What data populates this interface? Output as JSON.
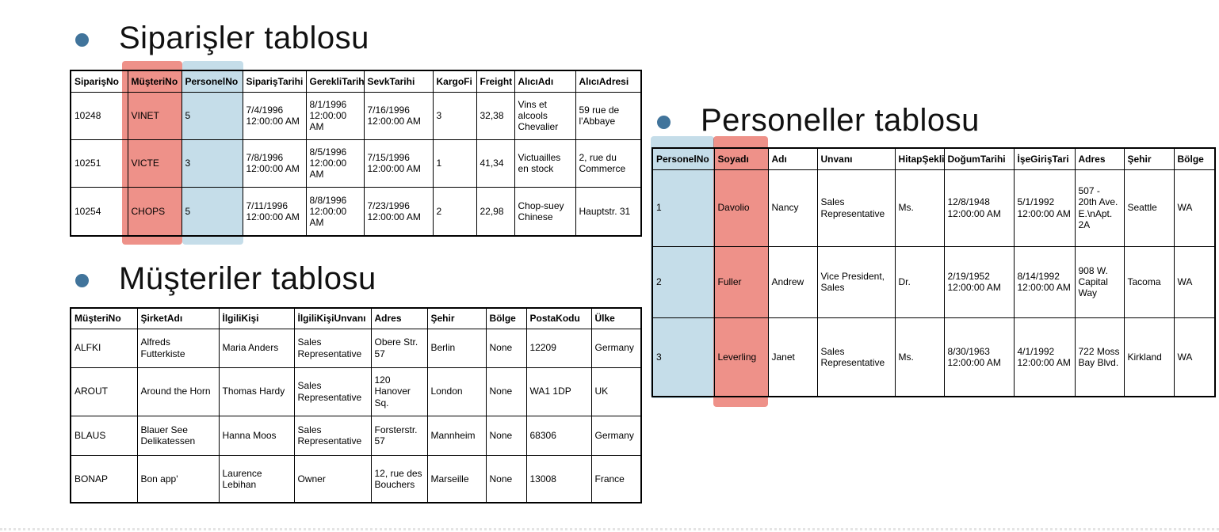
{
  "colors": {
    "red_highlight": "#EE9189",
    "blue_highlight": "#C5DDE9",
    "bullet": "#41749B",
    "table_border": "#000000"
  },
  "tables": {
    "orders": {
      "title": "Siparişler tablosu",
      "columns": [
        "SiparişNo",
        "MüşteriNo",
        "PersonelNo",
        "SiparişTarihi",
        "GerekliTarih",
        "SevkTarihi",
        "KargoFi",
        "Freight",
        "AlıcıAdı",
        "AlıcıAdresi"
      ],
      "rows": [
        [
          "10248",
          "VINET",
          "5",
          "7/4/1996 12:00:00 AM",
          "8/1/1996 12:00:00 AM",
          "7/16/1996 12:00:00 AM",
          "3",
          "32,38",
          "Vins et alcools Chevalier",
          "59 rue de l'Abbaye"
        ],
        [
          "10251",
          "VICTE",
          "3",
          "7/8/1996 12:00:00 AM",
          "8/5/1996 12:00:00 AM",
          "7/15/1996 12:00:00 AM",
          "1",
          "41,34",
          "Victuailles en stock",
          "2, rue du Commerce"
        ],
        [
          "10254",
          "CHOPS",
          "5",
          "7/11/1996 12:00:00 AM",
          "8/8/1996 12:00:00 AM",
          "7/23/1996 12:00:00 AM",
          "2",
          "22,98",
          "Chop-suey Chinese",
          "Hauptstr. 31"
        ]
      ],
      "highlighted_columns": [
        {
          "column": "MüşteriNo",
          "color": "red"
        },
        {
          "column": "PersonelNo",
          "color": "blue"
        }
      ]
    },
    "customers": {
      "title": "Müşteriler tablosu",
      "columns": [
        "MüşteriNo",
        "ŞirketAdı",
        "İlgiliKişi",
        "İlgiliKişiUnvanı",
        "Adres",
        "Şehir",
        "Bölge",
        "PostaKodu",
        "Ülke"
      ],
      "rows": [
        [
          "ALFKI",
          "Alfreds Futterkiste",
          "Maria Anders",
          "Sales Representative",
          "Obere Str. 57",
          "Berlin",
          "None",
          "12209",
          "Germany"
        ],
        [
          "AROUT",
          "Around the Horn",
          "Thomas Hardy",
          "Sales Representative",
          "120 Hanover Sq.",
          "London",
          "None",
          "WA1 1DP",
          "UK"
        ],
        [
          "BLAUS",
          "Blauer See Delikatessen",
          "Hanna Moos",
          "Sales Representative",
          "Forsterstr. 57",
          "Mannheim",
          "None",
          "68306",
          "Germany"
        ],
        [
          "BONAP",
          "Bon app'",
          "Laurence Lebihan",
          "Owner",
          "12, rue des Bouchers",
          "Marseille",
          "None",
          "13008",
          "France"
        ]
      ],
      "highlighted_columns": []
    },
    "employees": {
      "title": "Personeller tablosu",
      "columns": [
        "PersonelNo",
        "Soyadı",
        "Adı",
        "Unvanı",
        "HitapŞekli",
        "DoğumTarihi",
        "İşeGirişTari",
        "Adres",
        "Şehir",
        "Bölge"
      ],
      "rows": [
        [
          "1",
          "Davolio",
          "Nancy",
          "Sales Representative",
          "Ms.",
          "12/8/1948 12:00:00 AM",
          "5/1/1992 12:00:00 AM",
          "507 - 20th Ave. E.\\nApt. 2A",
          "Seattle",
          "WA"
        ],
        [
          "2",
          "Fuller",
          "Andrew",
          "Vice President, Sales",
          "Dr.",
          "2/19/1952 12:00:00 AM",
          "8/14/1992 12:00:00 AM",
          "908 W. Capital Way",
          "Tacoma",
          "WA"
        ],
        [
          "3",
          "Leverling",
          "Janet",
          "Sales Representative",
          "Ms.",
          "8/30/1963 12:00:00 AM",
          "4/1/1992 12:00:00 AM",
          "722 Moss Bay Blvd.",
          "Kirkland",
          "WA"
        ]
      ],
      "highlighted_columns": [
        {
          "column": "PersonelNo",
          "color": "blue"
        },
        {
          "column": "Soyadı",
          "color": "red"
        }
      ]
    }
  }
}
